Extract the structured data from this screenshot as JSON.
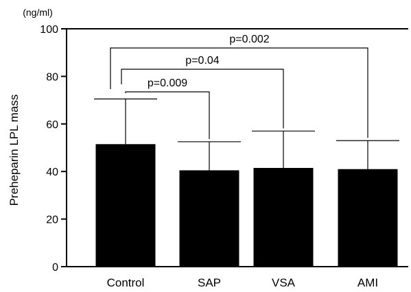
{
  "chart_data": {
    "type": "bar",
    "categories": [
      "Control",
      "SAP",
      "VSA",
      "AMI"
    ],
    "values": [
      51.5,
      40.5,
      41.5,
      41
    ],
    "error_upper": [
      70.5,
      52.5,
      57,
      53
    ],
    "unit": "(ng/ml)",
    "ylabel": "Preheparin LPL mass",
    "xlabel": "",
    "ylim": [
      0,
      100
    ],
    "yticks": [
      0,
      20,
      40,
      60,
      80,
      100
    ],
    "comparisons": [
      {
        "from": "Control",
        "to": "SAP",
        "label": "p=0.009"
      },
      {
        "from": "Control",
        "to": "VSA",
        "label": "p=0.04"
      },
      {
        "from": "Control",
        "to": "AMI",
        "label": "p=0.002"
      }
    ],
    "colors": {
      "bar": "#000000",
      "axis": "#000000",
      "background": "#ffffff"
    },
    "grid": false,
    "legend": "none"
  }
}
